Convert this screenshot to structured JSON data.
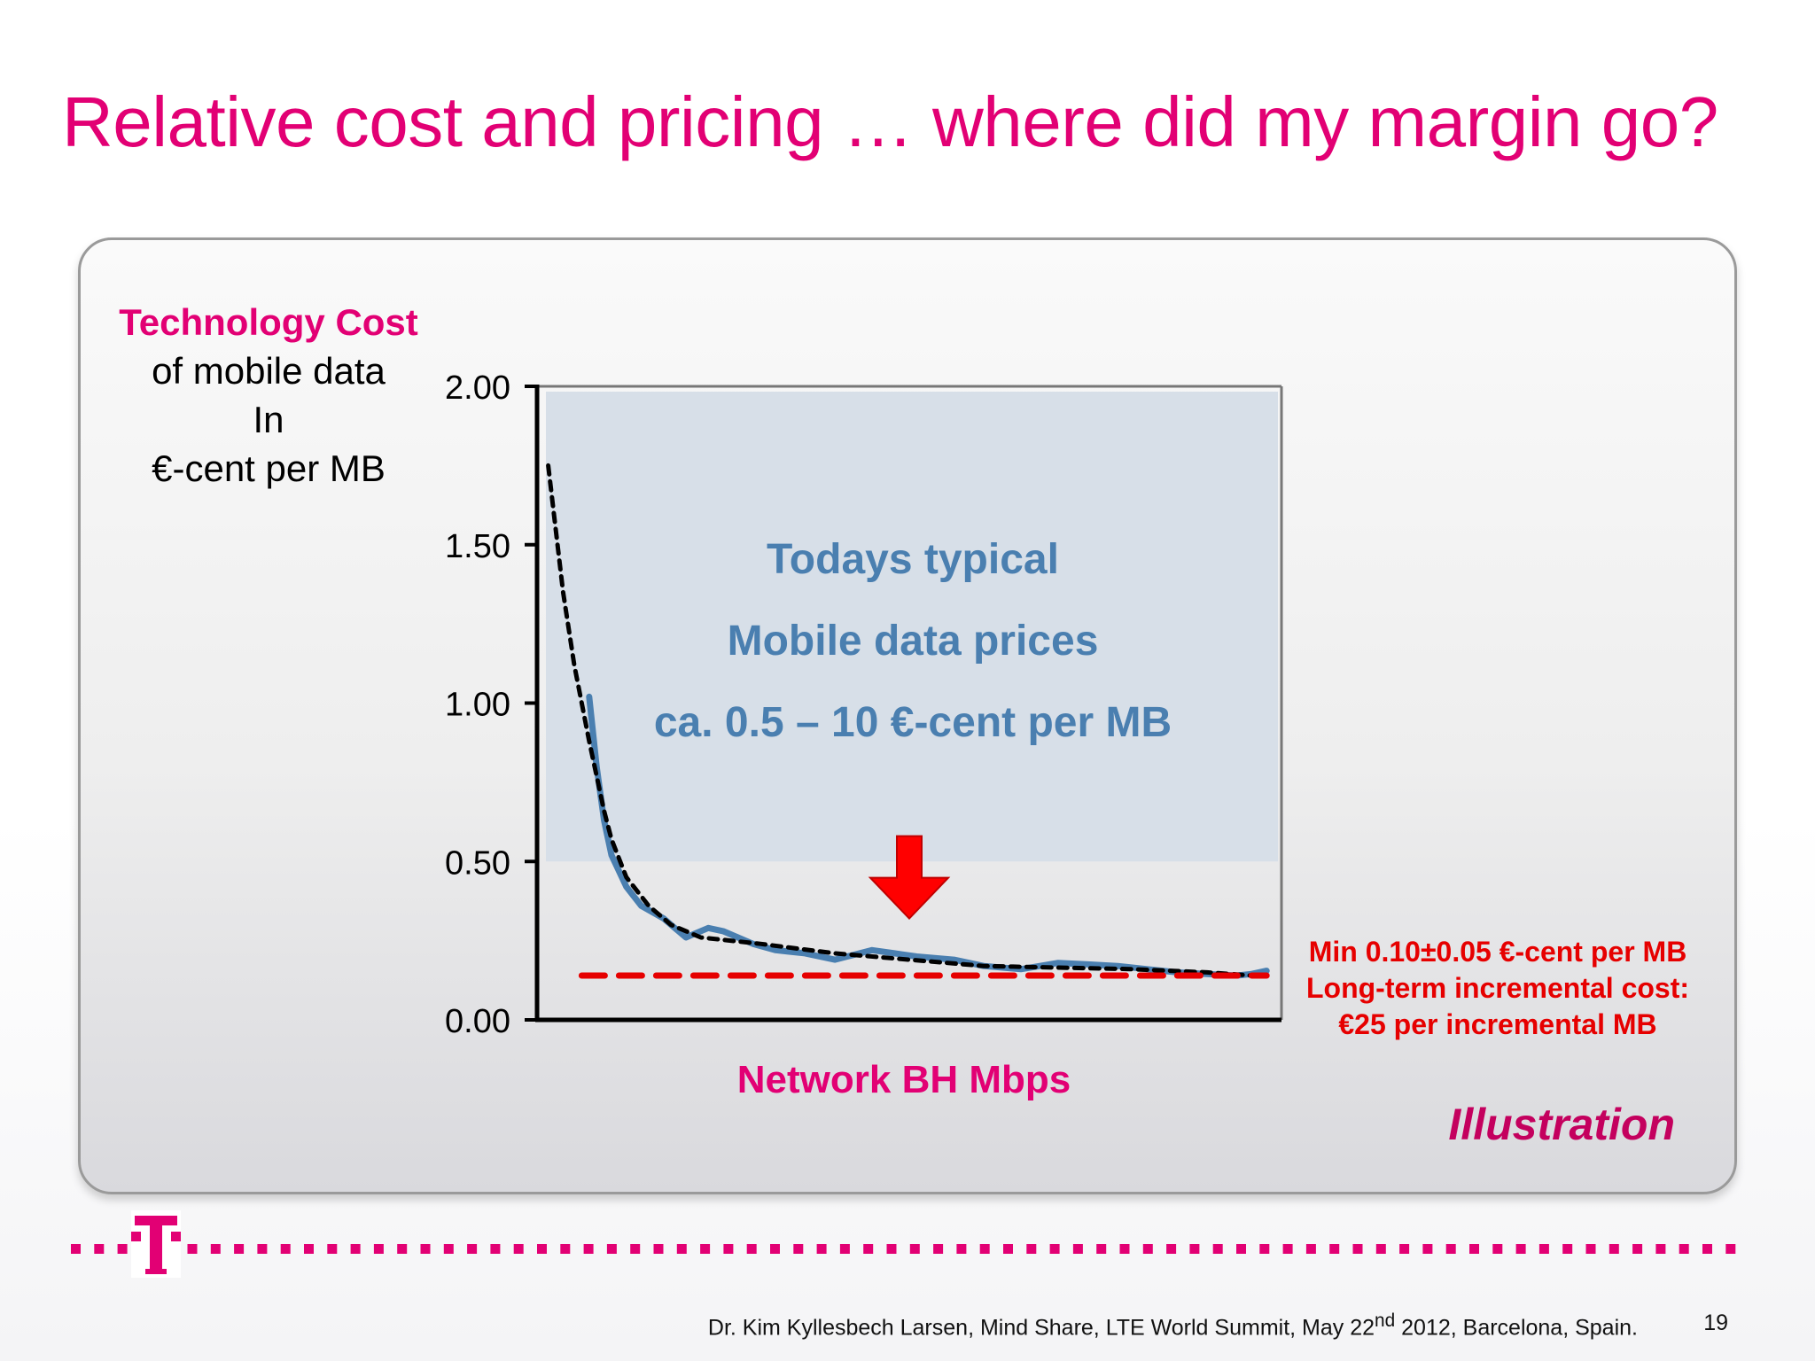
{
  "slide": {
    "title": "Relative cost and pricing … where did my margin go?",
    "footer": {
      "citation_prefix": "Dr. Kim Kyllesbech Larsen, Mind Share, LTE World Summit, May 22",
      "citation_sup": "nd",
      "citation_suffix": " 2012, Barcelona, Spain.",
      "page_number": "19"
    },
    "brand_color": "#e20074",
    "logo_icon": "telekom-t-logo-icon"
  },
  "chart_data": {
    "type": "line",
    "title": "",
    "ylabel_lines": [
      "Technology Cost",
      "of mobile data",
      "In",
      "€-cent per MB"
    ],
    "xlabel": "Network BH Mbps",
    "ylim": [
      0,
      2
    ],
    "yticks": [
      "0.00",
      "0.50",
      "1.00",
      "1.50",
      "2.00"
    ],
    "xlim": [
      0,
      100
    ],
    "grid": false,
    "legend": "none",
    "price_band": {
      "ymin": 0.5,
      "ymax": 2.0,
      "color": "#d7dfe8",
      "lines": [
        "Todays typical",
        "Mobile data prices",
        "ca. 0.5 – 10 €-cent per MB"
      ]
    },
    "series": [
      {
        "style": "solid",
        "color": "#4a7fb0",
        "x": [
          7,
          8,
          9,
          10,
          12,
          14,
          17,
          20,
          23,
          25,
          29,
          32,
          36,
          40,
          45,
          48,
          51,
          56,
          60,
          65,
          70,
          74,
          78,
          82,
          86,
          90,
          94,
          96,
          98
        ],
        "y": [
          1.02,
          0.8,
          0.63,
          0.52,
          0.42,
          0.36,
          0.32,
          0.26,
          0.29,
          0.28,
          0.24,
          0.22,
          0.21,
          0.19,
          0.22,
          0.21,
          0.2,
          0.19,
          0.17,
          0.16,
          0.18,
          0.175,
          0.17,
          0.16,
          0.15,
          0.145,
          0.14,
          0.145,
          0.155
        ]
      },
      {
        "style": "dashed",
        "color": "#000000",
        "x": [
          1.5,
          2.5,
          3.5,
          5,
          6,
          7,
          8,
          9,
          10,
          12,
          15,
          18,
          22,
          30,
          40,
          50,
          60,
          70,
          80,
          90,
          96
        ],
        "y": [
          1.75,
          1.55,
          1.35,
          1.12,
          1.0,
          0.88,
          0.77,
          0.66,
          0.57,
          0.45,
          0.36,
          0.3,
          0.26,
          0.24,
          0.21,
          0.19,
          0.17,
          0.165,
          0.16,
          0.15,
          0.14
        ]
      },
      {
        "style": "dashed",
        "color": "#e60000",
        "x": [
          6,
          98
        ],
        "y": [
          0.14,
          0.14
        ]
      }
    ],
    "annotation": {
      "arrow_x": 50,
      "arrow_y_top": 0.58,
      "arrow_y_bottom": 0.32,
      "arrow_color": "#ff0000",
      "lines": [
        "Min 0.10±0.05 €-cent per MB",
        "Long-term incremental cost:",
        "€25 per incremental MB"
      ]
    },
    "illustration_label": "Illustration"
  }
}
